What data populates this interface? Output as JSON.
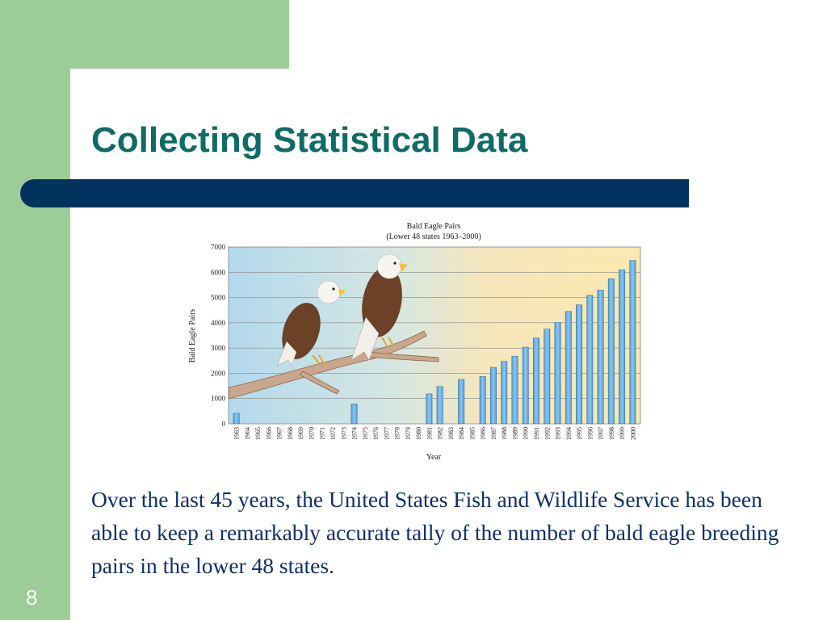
{
  "slide": {
    "title": "Collecting Statistical Data",
    "body": "Over the last 45 years, the United States Fish and Wildlife Service has been able to keep a remarkably accurate tally of the number of bald eagle breeding pairs in the lower 48 states.",
    "page_number": "8"
  },
  "colors": {
    "accent_green": "#9dcd96",
    "title_teal": "#0f6b66",
    "bar_navy": "#02335f",
    "body_text": "#0f2f6e",
    "bar_fill": "#6aaee0"
  },
  "chart_data": {
    "type": "bar",
    "title": "Bald Eagle Pairs",
    "subtitle": "(Lower 48 states 1963–2000)",
    "xlabel": "Year",
    "ylabel": "Bald Eagle Pairs",
    "ylim": [
      0,
      7000
    ],
    "yticks": [
      "0",
      "1000",
      "2000",
      "3000",
      "4000",
      "5000",
      "6000",
      "7000"
    ],
    "grid": true,
    "categories": [
      "1963",
      "1964",
      "1965",
      "1966",
      "1967",
      "1968",
      "1969",
      "1970",
      "1971",
      "1972",
      "1973",
      "1974",
      "1975",
      "1976",
      "1977",
      "1978",
      "1979",
      "1980",
      "1981",
      "1982",
      "1983",
      "1984",
      "1985",
      "1986",
      "1987",
      "1988",
      "1989",
      "1990",
      "1991",
      "1992",
      "1993",
      "1994",
      "1995",
      "1996",
      "1997",
      "1998",
      "1999",
      "2000"
    ],
    "values": [
      417,
      null,
      null,
      null,
      null,
      null,
      null,
      null,
      null,
      null,
      null,
      791,
      null,
      null,
      null,
      null,
      null,
      null,
      1188,
      1480,
      null,
      1757,
      null,
      1875,
      2238,
      2475,
      2680,
      3035,
      3399,
      3749,
      4016,
      4452,
      4712,
      5094,
      5295,
      5748,
      6104,
      6471
    ]
  }
}
